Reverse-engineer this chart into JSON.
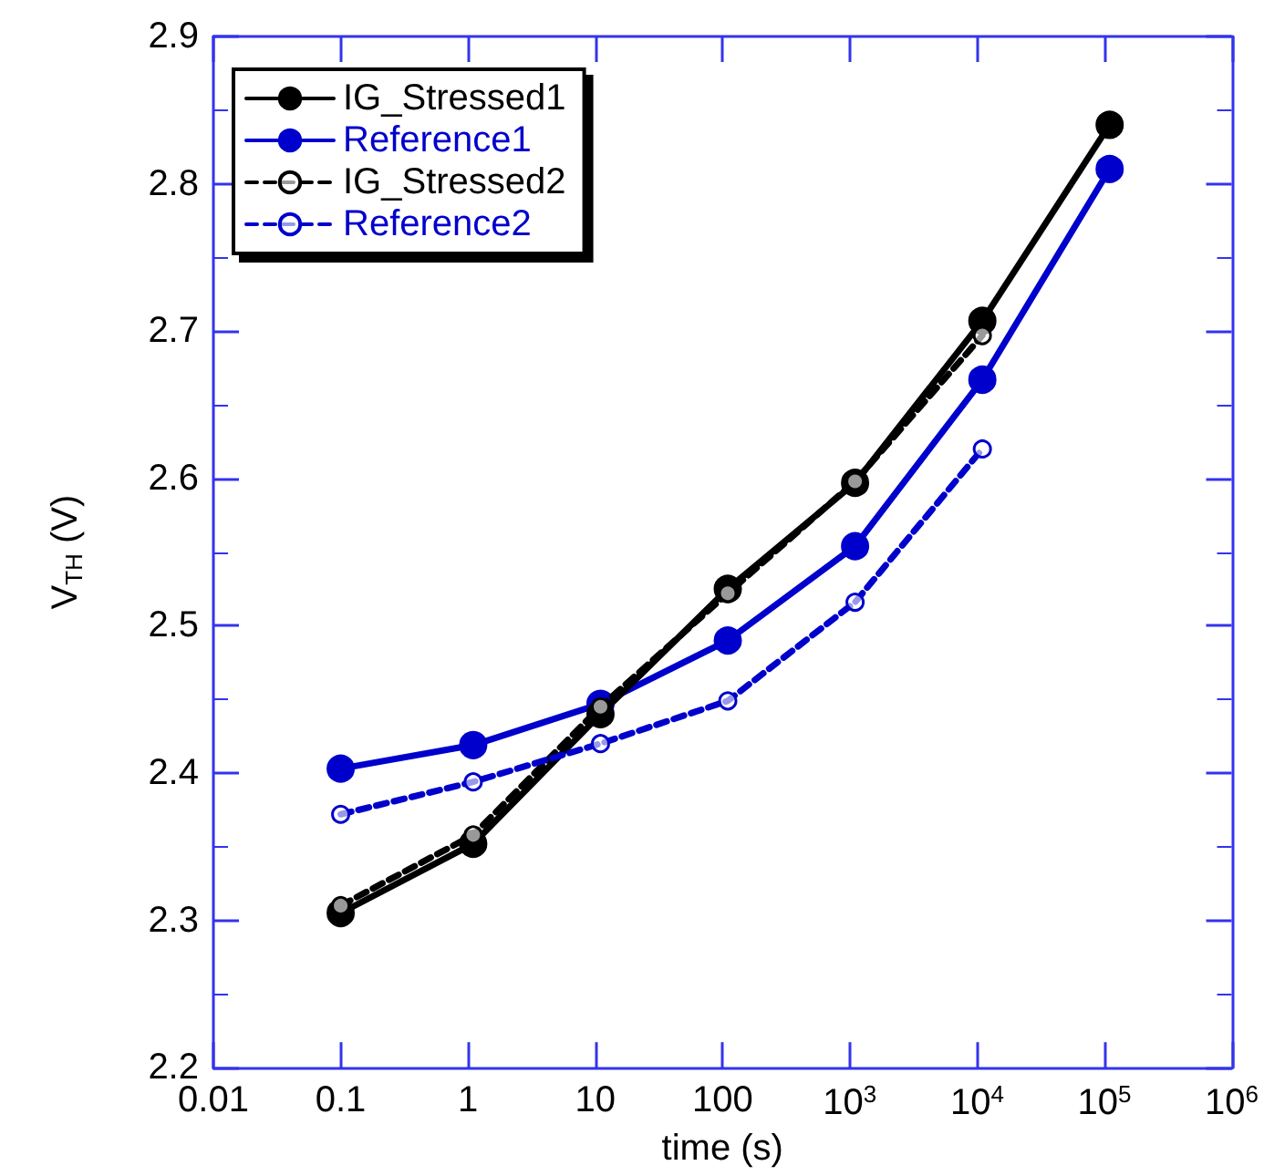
{
  "chart_data": {
    "type": "line",
    "xlabel": "time (s)",
    "ylabel": "V$_{TH}$ (V)",
    "log": "x",
    "xlim": [
      0.01,
      1000000
    ],
    "ylim": [
      2.2,
      2.9
    ],
    "xticks": [
      0.01,
      0.1,
      1,
      10,
      100,
      {
        "value": 1000,
        "label": "10$^{3}$"
      },
      {
        "value": 10000,
        "label": "10$^{4}$"
      },
      {
        "value": 100000,
        "label": "10$^{5}$"
      },
      {
        "value": 1000000,
        "label": "10$^{6}$"
      }
    ],
    "yticks": [
      2.2,
      2.3,
      2.4,
      2.5,
      2.6,
      2.7,
      2.8,
      2.9
    ],
    "grid": false,
    "legend": "top left",
    "marker": "circle",
    "series": [
      {
        "name": "IG_Stressed1",
        "color": "#000000",
        "line_style": "solid",
        "x": [
          0.1,
          1.1,
          11,
          110,
          1100,
          11000,
          110000
        ],
        "values": [
          2.305,
          2.352,
          2.44,
          2.525,
          2.597,
          2.707,
          2.84
        ]
      },
      {
        "name": "Reference1",
        "color": "#0000cc",
        "line_style": "solid",
        "x": [
          0.1,
          1.1,
          11,
          110,
          1100,
          11000,
          110000
        ],
        "values": [
          2.403,
          2.419,
          2.447,
          2.49,
          2.554,
          2.667,
          2.81
        ]
      },
      {
        "name": "IG_Stressed2",
        "color": "#000000",
        "line_style": "dashed",
        "x": [
          0.1,
          1.1,
          11,
          110,
          1100,
          11000
        ],
        "values": [
          2.31,
          2.358,
          2.445,
          2.522,
          2.598,
          2.697
        ]
      },
      {
        "name": "Reference2",
        "color": "#0000cc",
        "line_style": "dashed",
        "x": [
          0.1,
          1.1,
          11,
          110,
          1100,
          11000
        ],
        "values": [
          2.372,
          2.394,
          2.42,
          2.449,
          2.516,
          2.62
        ]
      }
    ]
  }
}
